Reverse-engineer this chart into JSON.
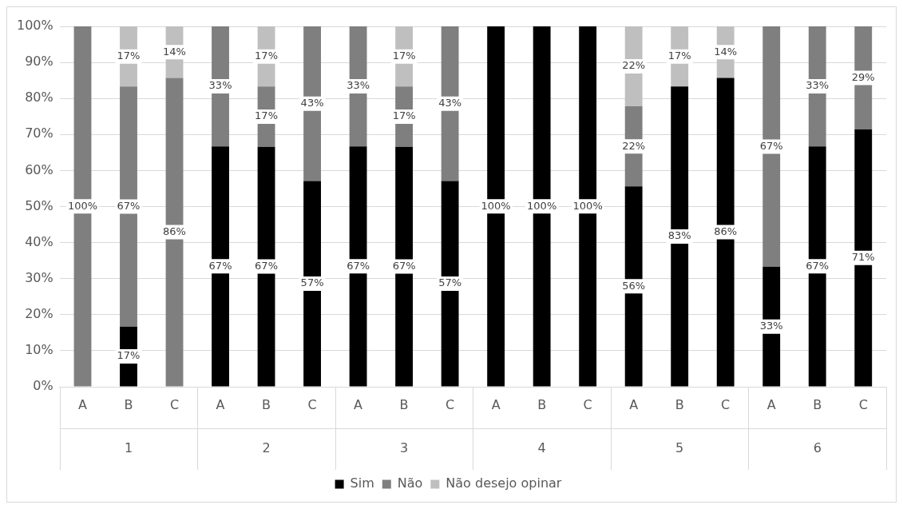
{
  "chart_data": {
    "type": "bar",
    "stacked": true,
    "categories": [
      "A",
      "B",
      "C",
      "A",
      "B",
      "C",
      "A",
      "B",
      "C",
      "A",
      "B",
      "C",
      "A",
      "B",
      "C",
      "A",
      "B",
      "C"
    ],
    "series": [
      {
        "name": "Sim",
        "color": "#000000",
        "values": [
          0,
          16.7,
          0,
          66.7,
          66.6,
          57.1,
          66.7,
          66.6,
          57.1,
          100,
          100,
          100,
          55.6,
          83.3,
          85.7,
          33.3,
          66.7,
          71.4
        ],
        "value_labels": [
          null,
          "17%",
          null,
          "67%",
          "67%",
          "57%",
          "67%",
          "67%",
          "57%",
          "100%",
          "100%",
          "100%",
          "56%",
          "83%",
          "86%",
          "33%",
          "67%",
          "71%"
        ]
      },
      {
        "name": "Não",
        "color": "#7f7f7f",
        "values": [
          100,
          66.6,
          85.7,
          33.3,
          16.7,
          42.9,
          33.3,
          16.7,
          42.9,
          0,
          0,
          0,
          22.2,
          0,
          0,
          66.7,
          33.3,
          28.6
        ],
        "value_labels": [
          "100%",
          "67%",
          "86%",
          "33%",
          "17%",
          "43%",
          "33%",
          "17%",
          "43%",
          null,
          null,
          null,
          "22%",
          null,
          null,
          "67%",
          "33%",
          "29%"
        ]
      },
      {
        "name": "Não desejo opinar",
        "color": "#bfbfbf",
        "values": [
          0,
          16.7,
          14.3,
          0,
          16.7,
          0,
          0,
          16.7,
          0,
          0,
          0,
          0,
          22.2,
          16.7,
          14.3,
          0,
          0,
          0
        ],
        "value_labels": [
          null,
          "17%",
          "14%",
          null,
          "17%",
          null,
          null,
          "17%",
          null,
          null,
          null,
          null,
          "22%",
          "17%",
          "14%",
          null,
          null,
          null
        ]
      }
    ],
    "annotations": [
      "1",
      "2",
      "3",
      "4",
      "5",
      "6"
    ],
    "ylim": [
      0,
      100
    ],
    "yticks": [
      {
        "value": 0,
        "label": "0%"
      },
      {
        "value": 10,
        "label": "10%"
      },
      {
        "value": 20,
        "label": "20%"
      },
      {
        "value": 30,
        "label": "30%"
      },
      {
        "value": 40,
        "label": "40%"
      },
      {
        "value": 50,
        "label": "50%"
      },
      {
        "value": 60,
        "label": "60%"
      },
      {
        "value": 70,
        "label": "70%"
      },
      {
        "value": 80,
        "label": "80%"
      },
      {
        "value": 90,
        "label": "90%"
      },
      {
        "value": 100,
        "label": "100%"
      }
    ],
    "grid": "y",
    "legend": "bottom"
  }
}
